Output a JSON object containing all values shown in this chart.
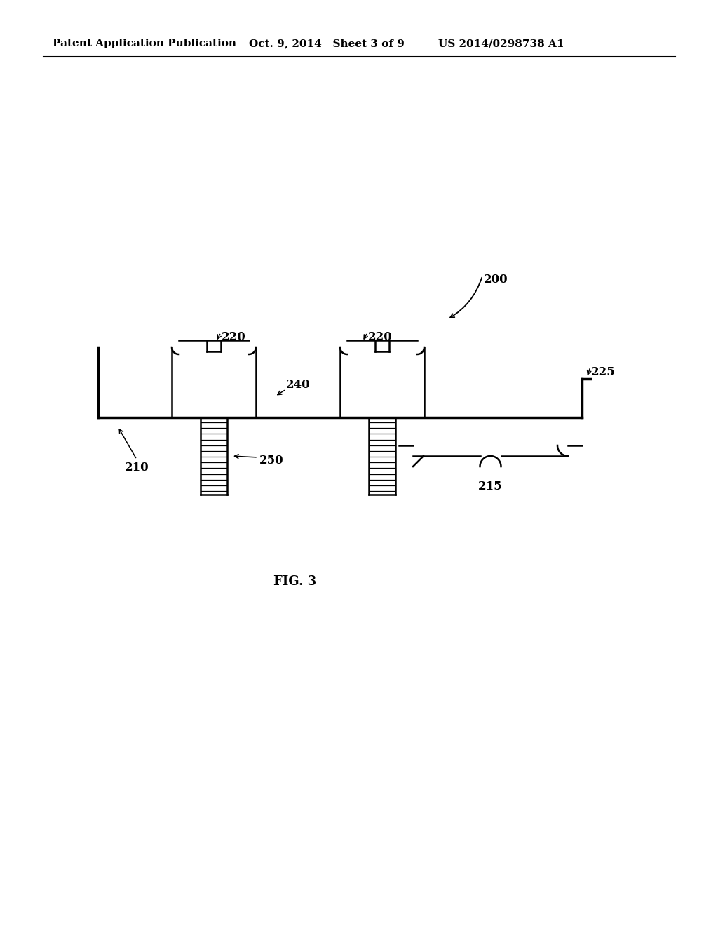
{
  "bg_color": "#ffffff",
  "header_left": "Patent Application Publication",
  "header_mid": "Oct. 9, 2014   Sheet 3 of 9",
  "header_right": "US 2014/0298738 A1",
  "fig_label": "FIG. 3",
  "ref_200": "200",
  "ref_210": "210",
  "ref_215": "215",
  "ref_220": "220",
  "ref_225": "225",
  "ref_240": "240",
  "ref_250": "250"
}
